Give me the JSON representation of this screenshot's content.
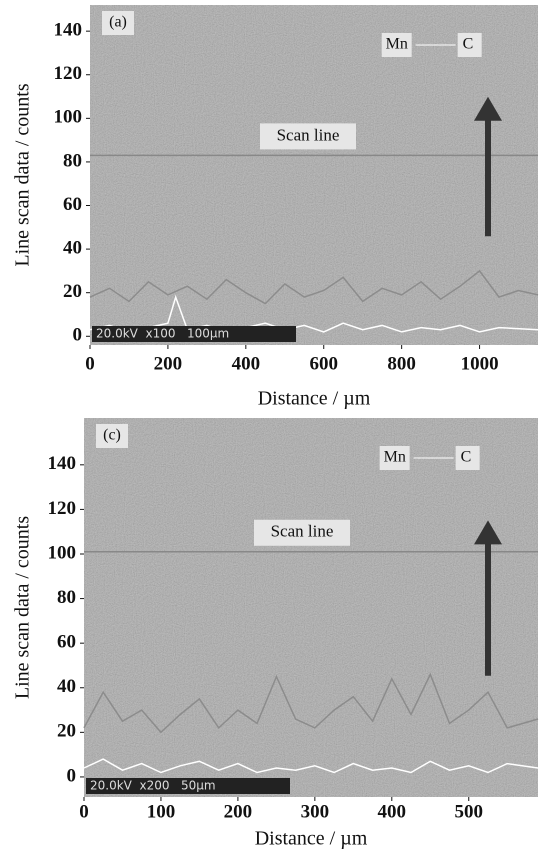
{
  "chart_data": [
    {
      "type": "line",
      "panel_label": "(a)",
      "x_label": "Distance / µm",
      "y_label": "Line scan data / counts",
      "scan_line": {
        "label": "Scan line",
        "y": 83
      },
      "scale_bar": "20.0kV  x100   100µm",
      "xlim": [
        0,
        1150
      ],
      "ylim": [
        -4,
        152
      ],
      "xticks": [
        0,
        200,
        400,
        600,
        800,
        1000
      ],
      "yticks": [
        0,
        20,
        40,
        60,
        80,
        100,
        120,
        140
      ],
      "series": [
        {
          "name": "Mn",
          "color": "#8c8c8c",
          "x": [
            0,
            50,
            100,
            150,
            200,
            250,
            300,
            350,
            400,
            450,
            500,
            550,
            600,
            650,
            700,
            750,
            800,
            850,
            900,
            950,
            1000,
            1050,
            1100,
            1150
          ],
          "values": [
            18,
            22,
            16,
            25,
            19,
            23,
            17,
            26,
            20,
            15,
            24,
            18,
            21,
            27,
            16,
            22,
            19,
            25,
            17,
            23,
            30,
            18,
            21,
            19
          ]
        },
        {
          "name": "C",
          "color": "#ffffff",
          "x": [
            0,
            50,
            100,
            150,
            200,
            220,
            250,
            300,
            350,
            400,
            450,
            500,
            550,
            600,
            650,
            700,
            750,
            800,
            850,
            900,
            950,
            1000,
            1050,
            1150
          ],
          "values": [
            3,
            5,
            2,
            4,
            6,
            18,
            3,
            5,
            2,
            4,
            6,
            3,
            5,
            2,
            6,
            3,
            5,
            2,
            4,
            3,
            5,
            2,
            4,
            3
          ]
        }
      ]
    },
    {
      "type": "line",
      "panel_label": "(c)",
      "x_label": "Distance / µm",
      "y_label": "Line scan data / counts",
      "scan_line": {
        "label": "Scan line",
        "y": 101
      },
      "scale_bar": "20.0kV  x200   50µm",
      "xlim": [
        0,
        590
      ],
      "ylim": [
        -9,
        161
      ],
      "xticks": [
        0,
        100,
        200,
        300,
        400,
        500
      ],
      "yticks": [
        0,
        20,
        40,
        60,
        80,
        100,
        120,
        140
      ],
      "series": [
        {
          "name": "Mn",
          "color": "#8c8c8c",
          "x": [
            0,
            25,
            50,
            75,
            100,
            125,
            150,
            175,
            200,
            225,
            250,
            275,
            300,
            325,
            350,
            375,
            400,
            425,
            450,
            475,
            500,
            525,
            550,
            590
          ],
          "values": [
            22,
            38,
            25,
            30,
            20,
            28,
            35,
            22,
            30,
            24,
            45,
            26,
            22,
            30,
            36,
            25,
            44,
            28,
            46,
            24,
            30,
            38,
            22,
            26
          ]
        },
        {
          "name": "C",
          "color": "#ffffff",
          "x": [
            0,
            25,
            50,
            75,
            100,
            125,
            150,
            175,
            200,
            225,
            250,
            275,
            300,
            325,
            350,
            375,
            400,
            425,
            450,
            475,
            500,
            525,
            550,
            590
          ],
          "values": [
            4,
            8,
            3,
            6,
            2,
            5,
            7,
            3,
            6,
            2,
            4,
            3,
            5,
            2,
            6,
            3,
            4,
            2,
            7,
            3,
            5,
            2,
            6,
            4
          ]
        }
      ]
    }
  ]
}
